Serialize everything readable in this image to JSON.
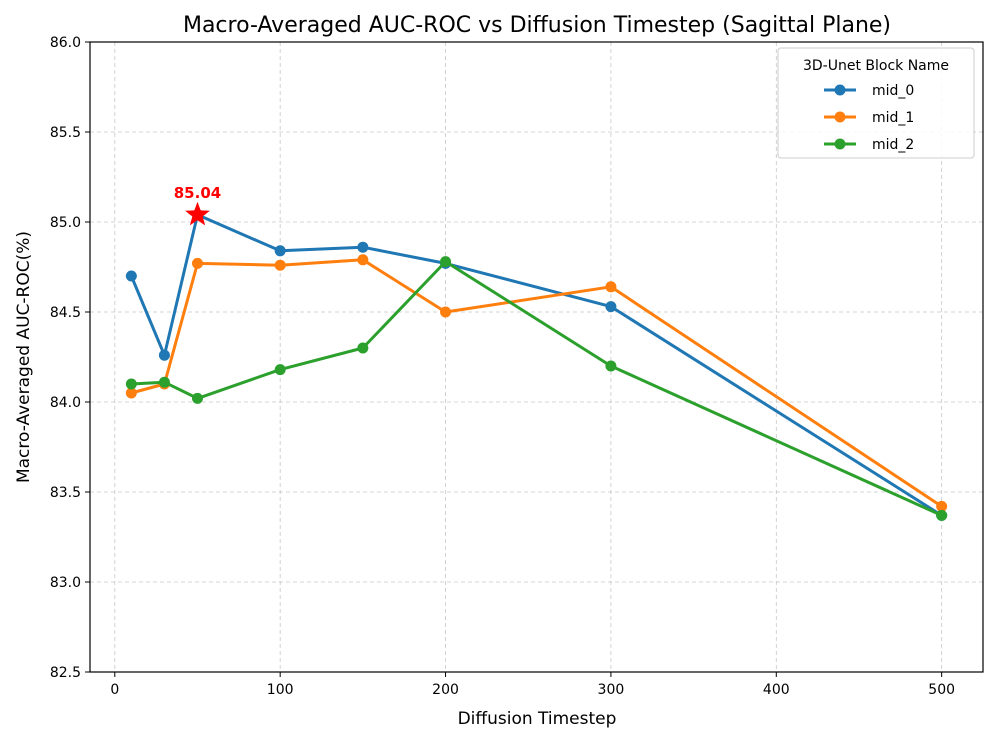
{
  "chart_data": {
    "type": "line",
    "title": "Macro-Averaged AUC-ROC vs Diffusion Timestep (Sagittal Plane)",
    "xlabel": "Diffusion Timestep",
    "ylabel": "Macro-Averaged AUC-ROC(%)",
    "xlim": [
      -15,
      525
    ],
    "ylim": [
      82.5,
      86.0
    ],
    "xticks": [
      0,
      100,
      200,
      300,
      400,
      500
    ],
    "yticks": [
      82.5,
      83.0,
      83.5,
      84.0,
      84.5,
      85.0,
      85.5,
      86.0
    ],
    "xtick_labels": [
      "0",
      "100",
      "200",
      "300",
      "400",
      "500"
    ],
    "ytick_labels": [
      "82.5",
      "83.0",
      "83.5",
      "84.0",
      "84.5",
      "85.0",
      "85.5",
      "86.0"
    ],
    "grid": true,
    "x": [
      10,
      30,
      50,
      100,
      150,
      200,
      300,
      500
    ],
    "series": [
      {
        "name": "mid_0",
        "color": "#1f77b4",
        "values": [
          84.7,
          84.26,
          85.04,
          84.84,
          84.86,
          84.77,
          84.53,
          83.37
        ]
      },
      {
        "name": "mid_1",
        "color": "#ff7f0e",
        "values": [
          84.05,
          84.1,
          84.77,
          84.76,
          84.79,
          84.5,
          84.64,
          83.42
        ]
      },
      {
        "name": "mid_2",
        "color": "#2ca02c",
        "values": [
          84.1,
          84.11,
          84.02,
          84.18,
          84.3,
          84.78,
          84.2,
          83.37
        ]
      }
    ],
    "legend": {
      "title": "3D-Unet Block Name",
      "position": "top-right"
    },
    "annotation": {
      "text": "85.04",
      "x": 50,
      "y": 85.04,
      "color": "#ff0000",
      "marker": "star"
    }
  }
}
